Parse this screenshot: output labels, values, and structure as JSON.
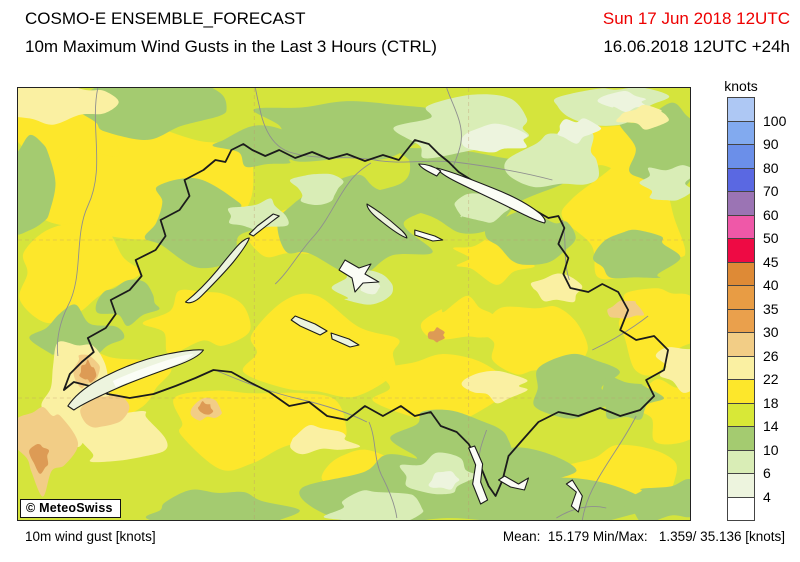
{
  "header": {
    "title": "COSMO-E ENSEMBLE_FORECAST",
    "subtitle": "10m Maximum Wind Gusts in the Last 3 Hours (CTRL)",
    "valid_date": "Sun 17 Jun 2018 12UTC",
    "valid_date_color": "#ee0000",
    "run_date": "16.06.2018 12UTC +24h"
  },
  "map": {
    "copyright": "© MeteoSwiss"
  },
  "legend": {
    "unit": "knots",
    "ticks": [
      100,
      90,
      80,
      70,
      60,
      50,
      45,
      40,
      35,
      30,
      26,
      22,
      18,
      14,
      10,
      6,
      4
    ],
    "colors_top_to_bottom": [
      "#aec8f4",
      "#82aaef",
      "#6b8fe9",
      "#5a68e2",
      "#9b74b4",
      "#ef58a8",
      "#ee0a44",
      "#de8a36",
      "#e89c44",
      "#eaa04c",
      "#f2cd86",
      "#faf0a2",
      "#fde72b",
      "#d8e837",
      "#a4cb70",
      "#d9edb6",
      "#edf4de",
      "#ffffff"
    ]
  },
  "footer": {
    "parameter": "10m wind gust [knots]",
    "stats": "Mean:  15.179 Min/Max:   1.359/ 35.136 [knots]",
    "mean": 15.179,
    "min": 1.359,
    "max": 35.136,
    "unit": "knots"
  },
  "chart_data": {
    "type": "heatmap",
    "title": "10m Maximum Wind Gusts in the Last 3 Hours (CTRL)",
    "region": "Switzerland",
    "unit": "knots",
    "scale_bin_edges": [
      4,
      6,
      10,
      14,
      18,
      22,
      26,
      30,
      35,
      40,
      45,
      50,
      60,
      70,
      80,
      90,
      100
    ],
    "scale_colors_low_to_high": [
      "#ffffff",
      "#edf4de",
      "#d9edb6",
      "#a4cb70",
      "#d8e837",
      "#fde72b",
      "#faf0a2",
      "#f2cd86",
      "#eaa04c",
      "#e89c44",
      "#de8a36",
      "#ee0a44",
      "#ef58a8",
      "#9b74b4",
      "#5a68e2",
      "#6b8fe9",
      "#82aaef",
      "#aec8f4"
    ],
    "field_stats": {
      "mean": 15.179,
      "min": 1.359,
      "max": 35.136
    },
    "legend_position": "right"
  }
}
